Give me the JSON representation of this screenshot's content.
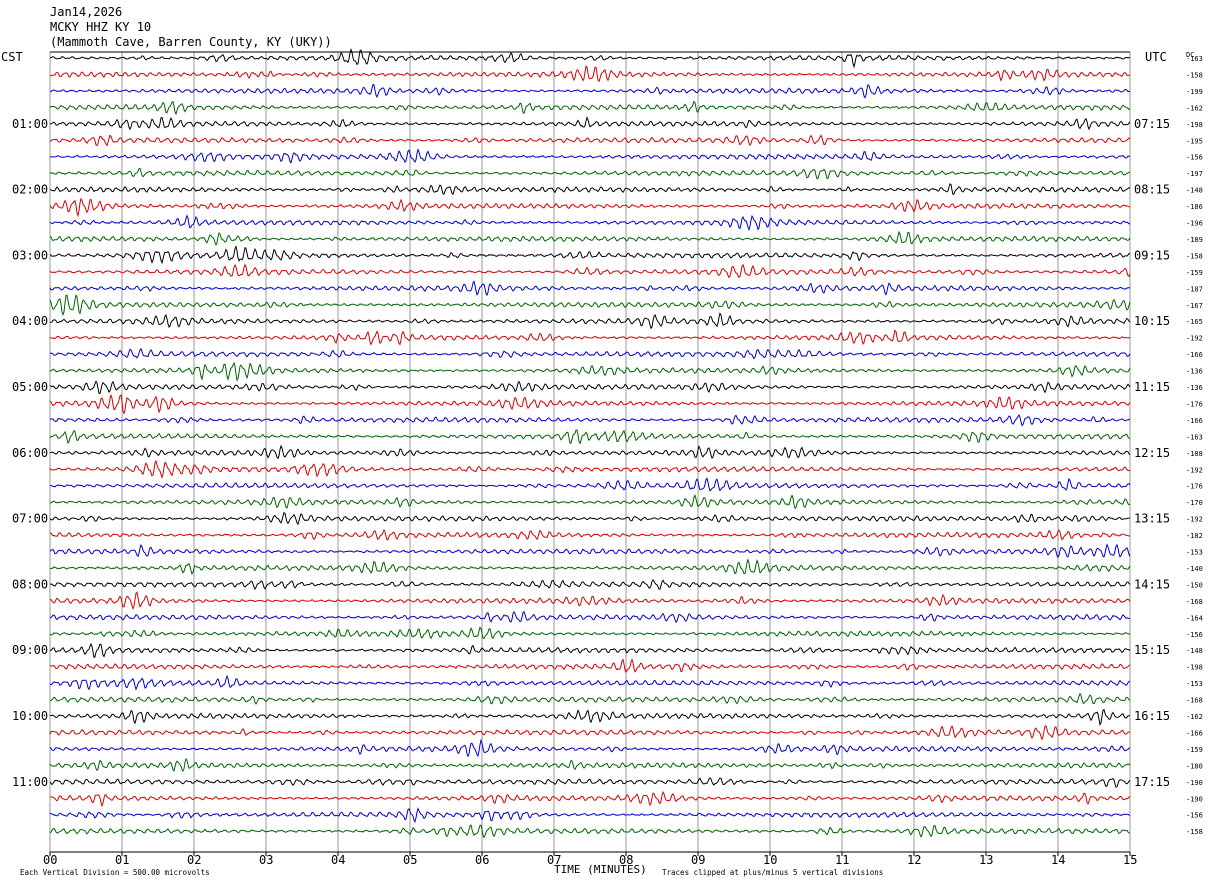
{
  "chart_data": {
    "type": "line",
    "title_lines": [
      "Jan14,2026",
      "MCKY HHZ KY 10",
      "(Mammoth Cave, Barren County, KY (UKY))"
    ],
    "left_timezone": "CST",
    "right_timezone": "UTC",
    "dc_header": "DC",
    "xlabel": "TIME (MINUTES)",
    "xlim": [
      0,
      15
    ],
    "x_ticks": [
      "00",
      "01",
      "02",
      "03",
      "04",
      "05",
      "06",
      "07",
      "08",
      "09",
      "10",
      "11",
      "12",
      "13",
      "14",
      "15"
    ],
    "left_hour_labels": [
      "01:00",
      "02:00",
      "03:00",
      "04:00",
      "05:00",
      "06:00",
      "07:00",
      "08:00",
      "09:00",
      "10:00",
      "11:00"
    ],
    "right_hour_labels": [
      "07:15",
      "08:15",
      "09:15",
      "10:15",
      "11:15",
      "12:15",
      "13:15",
      "14:15",
      "15:15",
      "16:15",
      "17:15"
    ],
    "trace_colors": [
      "#000000",
      "#d40000",
      "#0000c8",
      "#006400"
    ],
    "dc_offsets": [
      -163,
      -158,
      -199,
      -162,
      -198,
      -195,
      -156,
      -197,
      -148,
      -186,
      -196,
      -189,
      -158,
      -159,
      -187,
      -167,
      -165,
      -192,
      -166,
      -136,
      -136,
      -176,
      -166,
      -163,
      -188,
      -192,
      -176,
      -170,
      -192,
      -182,
      -153,
      -140,
      -150,
      -168,
      -164,
      -156,
      -148,
      -198,
      -153,
      -168,
      -162,
      -166,
      -159,
      -180,
      -190,
      -190,
      -156,
      -158
    ],
    "footer_left": "Each Vertical Division = 500.00 microvolts",
    "footer_right": "Traces clipped at plus/minus 5 vertical divisions",
    "grid": true,
    "rows": 48,
    "minutes_per_row": 15
  }
}
